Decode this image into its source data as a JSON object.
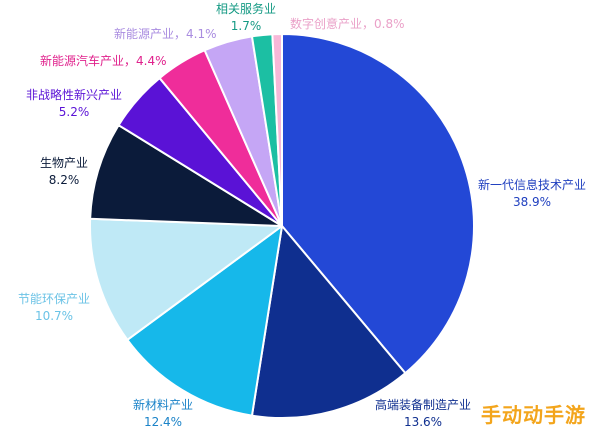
{
  "chart_data": {
    "type": "pie",
    "slices": [
      {
        "label": "新一代信息技术产业",
        "value_text": "38.9%",
        "value": 38.9,
        "color": "#2348d6",
        "label_color": "#1f3fbf"
      },
      {
        "label": "高端装备制造产业",
        "value_text": "13.6%",
        "value": 13.6,
        "color": "#0f2f8f",
        "label_color": "#0f2f8f"
      },
      {
        "label": "新材料产业",
        "value_text": "12.4%",
        "value": 12.4,
        "color": "#16b8ea",
        "label_color": "#1b83c8"
      },
      {
        "label": "节能环保产业",
        "value_text": "10.7%",
        "value": 10.7,
        "color": "#bfe9f6",
        "label_color": "#6cc3e6"
      },
      {
        "label": "生物产业",
        "value_text": "8.2%",
        "value": 8.2,
        "color": "#0b1b3a",
        "label_color": "#0b1b3a"
      },
      {
        "label": "非战略性新兴产业",
        "value_text": "5.2%",
        "value": 5.2,
        "color": "#5a12d6",
        "label_color": "#5a12d6"
      },
      {
        "label": "新能源汽车产业",
        "value_text": "4.4%",
        "value": 4.4,
        "color": "#ef2d9a",
        "label_color": "#e0218c"
      },
      {
        "label": "新能源产业",
        "value_text": "4.1%",
        "value": 4.1,
        "color": "#c5a6f5",
        "label_color": "#a98ce0"
      },
      {
        "label": "相关服务业",
        "value_text": "1.7%",
        "value": 1.7,
        "color": "#1cbfa3",
        "label_color": "#159a84"
      },
      {
        "label": "数字创意产业",
        "value_text": "0.8%",
        "value": 0.8,
        "color": "#f7b8d8",
        "label_color": "#eaa1c8"
      }
    ]
  },
  "watermark": "手动动手游"
}
